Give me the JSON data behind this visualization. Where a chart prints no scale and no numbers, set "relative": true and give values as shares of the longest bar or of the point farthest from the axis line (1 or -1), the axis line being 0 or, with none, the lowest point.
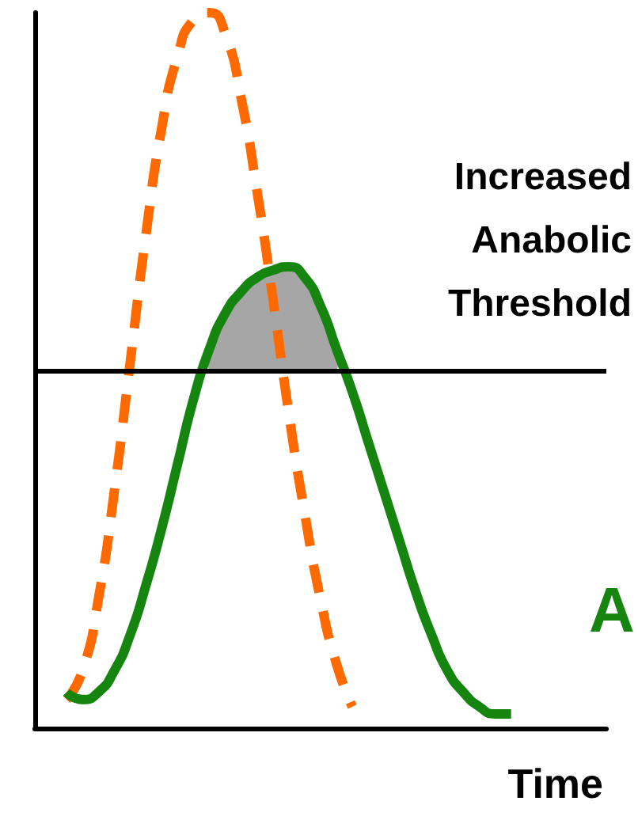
{
  "chart_data": {
    "type": "line",
    "relative": true,
    "xlabel": "Time",
    "categories": [
      null,
      null,
      null,
      null,
      null,
      null,
      null,
      null,
      null,
      null,
      null,
      null,
      null,
      null,
      null,
      null,
      null,
      null,
      null,
      null,
      null,
      null,
      null,
      null,
      null,
      null,
      null,
      null,
      null,
      null,
      null,
      null,
      null,
      null,
      null,
      null,
      null
    ],
    "series": [
      {
        "color": "#ff6a00",
        "line_style": "dashed",
        "values": [
          null,
          null,
          0.04,
          0.08,
          0.18,
          0.33,
          0.51,
          0.69,
          0.84,
          0.94,
          0.99,
          1,
          0.97,
          0.88,
          0.75,
          0.6,
          0.44,
          0.3,
          0.18,
          0.09,
          0.03,
          null,
          null,
          null,
          null,
          null,
          null,
          null,
          null,
          null,
          null,
          null,
          null,
          null,
          null,
          null,
          null
        ]
      },
      {
        "color": "#16850f",
        "line_style": "solid",
        "values": [
          null,
          null,
          0.05,
          0.04,
          0.05,
          0.08,
          0.13,
          0.2,
          0.28,
          0.37,
          0.46,
          0.53,
          0.58,
          0.61,
          0.63,
          0.64,
          0.645,
          0.63,
          0.59,
          0.53,
          0.47,
          0.4,
          0.33,
          0.26,
          0.19,
          0.13,
          0.08,
          0.05,
          0.03,
          0.02,
          0.02,
          null,
          null,
          null,
          null,
          null,
          null
        ]
      },
      {
        "type": "area",
        "color": "#a6a6a6",
        "values": [
          null,
          null,
          null,
          null,
          null,
          null,
          null,
          null,
          null,
          null,
          null,
          0.53,
          0.58,
          0.61,
          0.63,
          0.64,
          0.645,
          0.63,
          0.59,
          0.53,
          null,
          null,
          null,
          null,
          null,
          null,
          null,
          null,
          null,
          null,
          null,
          null,
          null,
          null,
          null,
          null,
          null
        ]
      }
    ],
    "ref_lines": [
      {
        "axis": "y",
        "value": 0.5,
        "color": "#000000"
      }
    ],
    "annotations": [
      "Increased\nAnabolic\nThreshold",
      "A"
    ],
    "marker": "none",
    "grid": false
  }
}
